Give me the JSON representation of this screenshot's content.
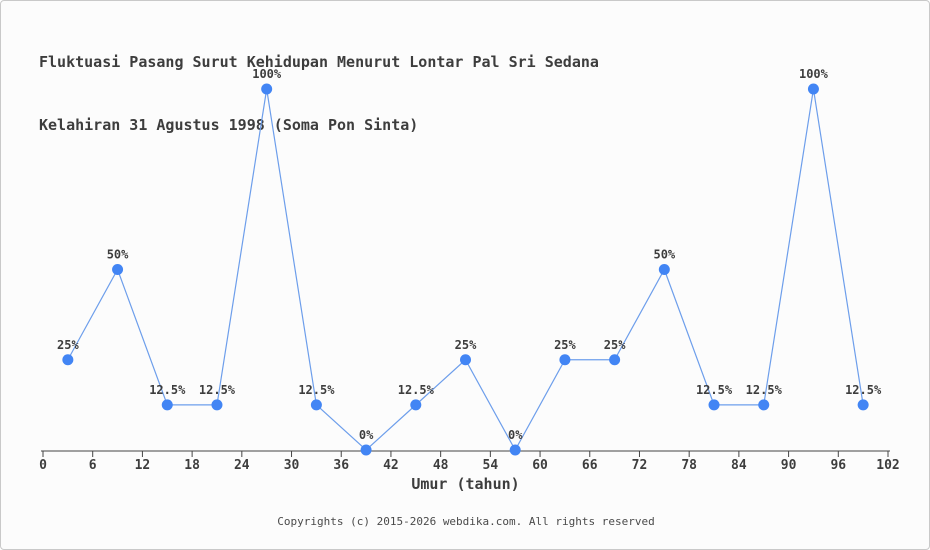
{
  "title": {
    "line1": "Fluktuasi Pasang Surut Kehidupan Menurut Lontar Pal Sri Sedana",
    "line2": "Kelahiran 31 Agustus 1998 (Soma Pon Sinta)"
  },
  "chart_data": {
    "type": "line",
    "x": [
      3,
      9,
      15,
      21,
      27,
      33,
      39,
      45,
      51,
      57,
      63,
      69,
      75,
      81,
      87,
      93,
      99
    ],
    "values": [
      25,
      50,
      12.5,
      12.5,
      100,
      12.5,
      0,
      12.5,
      25,
      0,
      25,
      25,
      50,
      12.5,
      12.5,
      100,
      12.5
    ],
    "point_labels": [
      "25%",
      "50%",
      "12.5%",
      "12.5%",
      "100%",
      "12.5%",
      "0%",
      "12.5%",
      "25%",
      "0%",
      "25%",
      "25%",
      "50%",
      "12.5%",
      "12.5%",
      "100%",
      "12.5%"
    ],
    "xlabel": "Umur (tahun)",
    "x_ticks": [
      0,
      6,
      12,
      18,
      24,
      30,
      36,
      42,
      48,
      54,
      60,
      66,
      72,
      78,
      84,
      90,
      96,
      102
    ],
    "xlim": [
      0,
      102
    ],
    "ylim": [
      0,
      100
    ],
    "grid": false,
    "legend": null,
    "colors": {
      "marker": "#4285f4",
      "line": "#6d9eeb",
      "axis": "#444444",
      "text": "#3d3d3d"
    }
  },
  "footer": {
    "copyright": "Copyrights (c) 2015-2026 webdika.com. All rights reserved"
  }
}
